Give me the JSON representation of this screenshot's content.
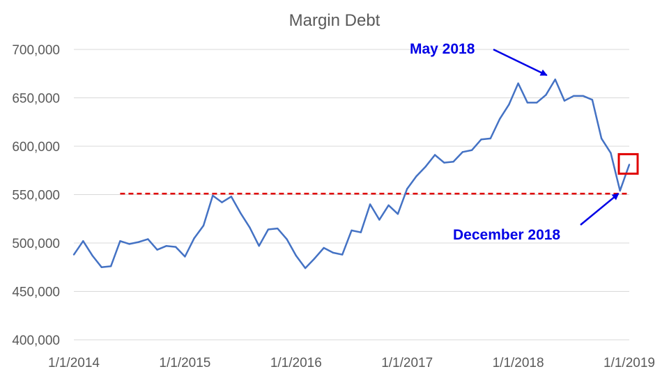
{
  "chart_data": {
    "type": "line",
    "title": "Margin Debt",
    "xlabel": "",
    "ylabel": "",
    "ylim": [
      400000,
      700000
    ],
    "y_ticks": [
      400000,
      450000,
      500000,
      550000,
      600000,
      650000,
      700000
    ],
    "y_tick_labels": [
      "400,000",
      "450,000",
      "500,000",
      "550,000",
      "600,000",
      "650,000",
      "700,000"
    ],
    "x_tick_labels": [
      "1/1/2014",
      "1/1/2015",
      "1/1/2016",
      "1/1/2017",
      "1/1/2018",
      "1/1/2019"
    ],
    "grid": true,
    "series": [
      {
        "color": "#4472c4",
        "x": [
          "2014-01",
          "2014-02",
          "2014-03",
          "2014-04",
          "2014-05",
          "2014-06",
          "2014-07",
          "2014-08",
          "2014-09",
          "2014-10",
          "2014-11",
          "2014-12",
          "2015-01",
          "2015-02",
          "2015-03",
          "2015-04",
          "2015-05",
          "2015-06",
          "2015-07",
          "2015-08",
          "2015-09",
          "2015-10",
          "2015-11",
          "2015-12",
          "2016-01",
          "2016-02",
          "2016-03",
          "2016-04",
          "2016-05",
          "2016-06",
          "2016-07",
          "2016-08",
          "2016-09",
          "2016-10",
          "2016-11",
          "2016-12",
          "2017-01",
          "2017-02",
          "2017-03",
          "2017-04",
          "2017-05",
          "2017-06",
          "2017-07",
          "2017-08",
          "2017-09",
          "2017-10",
          "2017-11",
          "2017-12",
          "2018-01",
          "2018-02",
          "2018-03",
          "2018-04",
          "2018-05",
          "2018-06",
          "2018-07",
          "2018-08",
          "2018-09",
          "2018-10",
          "2018-11",
          "2018-12",
          "2019-01"
        ],
        "values": [
          488000,
          502000,
          487000,
          475000,
          476000,
          502000,
          499000,
          501000,
          504000,
          493000,
          497000,
          496000,
          486000,
          505000,
          518000,
          549000,
          542000,
          548000,
          531000,
          516000,
          497000,
          514000,
          515000,
          504000,
          487000,
          474000,
          484000,
          495000,
          490000,
          488000,
          513000,
          511000,
          540000,
          524000,
          539000,
          530000,
          556000,
          569000,
          579000,
          591000,
          583000,
          584000,
          594000,
          596000,
          607000,
          608000,
          628000,
          643000,
          665000,
          645000,
          645000,
          653000,
          669000,
          647000,
          652000,
          652000,
          648000,
          608000,
          593000,
          554000,
          581000
        ]
      }
    ],
    "reference_line": {
      "value": 551000,
      "color": "#e00000",
      "style": "dashed",
      "start": "2014-06",
      "end": "2019-01"
    },
    "annotations": [
      {
        "text": "May 2018",
        "color": "#0000e6",
        "points_to": "2018-05"
      },
      {
        "text": "December 2018",
        "color": "#0000e6",
        "points_to": "2018-12"
      }
    ],
    "highlight_box": {
      "point": "2019-01",
      "color": "#e00000"
    }
  }
}
